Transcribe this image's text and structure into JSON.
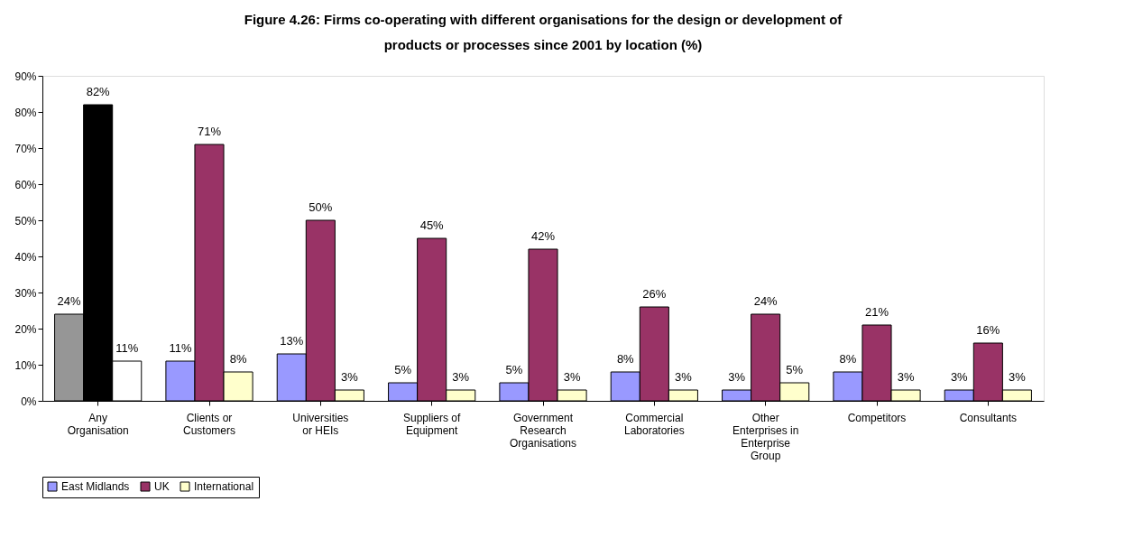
{
  "chart_data": {
    "type": "bar",
    "title": "Figure 4.26: Firms co-operating with different organisations for the design or development of products or processes since 2001 by location (%)",
    "categories": [
      "Any Organisation",
      "Clients or Customers",
      "Universities or HEIs",
      "Suppliers of Equipment",
      "Government Research Organisations",
      "Commercial Laboratories",
      "Other Enterprises in Enterprise Group",
      "Competitors",
      "Consultants"
    ],
    "series": [
      {
        "name": "East Midlands",
        "color": "#9999ff",
        "colors": [
          "#969696",
          "#9999ff",
          "#9999ff",
          "#9999ff",
          "#9999ff",
          "#9999ff",
          "#9999ff",
          "#9999ff",
          "#9999ff"
        ],
        "values": [
          24,
          11,
          13,
          5,
          5,
          8,
          3,
          8,
          3
        ],
        "value_labels": [
          "24%",
          "11%",
          "13%",
          "5%",
          "5%",
          "8%",
          "3%",
          "8%",
          "3%"
        ]
      },
      {
        "name": "UK",
        "color": "#993366",
        "colors": [
          "#000000",
          "#993366",
          "#993366",
          "#993366",
          "#993366",
          "#993366",
          "#993366",
          "#993366",
          "#993366"
        ],
        "values": [
          82,
          71,
          50,
          45,
          42,
          26,
          24,
          21,
          16
        ],
        "value_labels": [
          "82%",
          "71%",
          "50%",
          "45%",
          "42%",
          "26%",
          "24%",
          "21%",
          "16%"
        ]
      },
      {
        "name": "International",
        "color": "#ffffcc",
        "colors": [
          "#ffffff",
          "#ffffcc",
          "#ffffcc",
          "#ffffcc",
          "#ffffcc",
          "#ffffcc",
          "#ffffcc",
          "#ffffcc",
          "#ffffcc"
        ],
        "values": [
          11,
          8,
          3,
          3,
          3,
          3,
          5,
          3,
          3
        ],
        "value_labels": [
          "11%",
          "8%",
          "3%",
          "3%",
          "3%",
          "3%",
          "5%",
          "3%",
          "3%"
        ]
      }
    ],
    "ylim": [
      0,
      90
    ],
    "yticks": [
      {
        "value": 0,
        "label": "0%"
      },
      {
        "value": 10,
        "label": "10%"
      },
      {
        "value": 20,
        "label": "20%"
      },
      {
        "value": 30,
        "label": "30%"
      },
      {
        "value": 40,
        "label": "40%"
      },
      {
        "value": 50,
        "label": "50%"
      },
      {
        "value": 60,
        "label": "60%"
      },
      {
        "value": 70,
        "label": "70%"
      },
      {
        "value": 80,
        "label": "80%"
      },
      {
        "value": 90,
        "label": "90%"
      }
    ],
    "grid": false,
    "legend": "bottom"
  }
}
